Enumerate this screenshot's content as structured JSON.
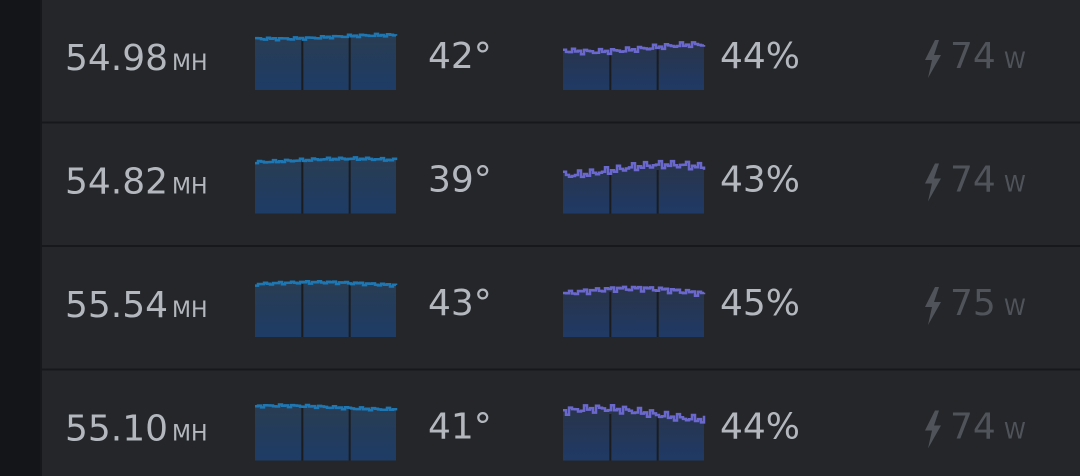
{
  "rows": [
    {
      "hashrate": "54.98",
      "hashrate_unit": "MH",
      "temperature": "42°",
      "fan": "44%",
      "power": "74",
      "power_unit": "W"
    },
    {
      "hashrate": "54.82",
      "hashrate_unit": "MH",
      "temperature": "39°",
      "fan": "43%",
      "power": "74",
      "power_unit": "W"
    },
    {
      "hashrate": "55.54",
      "hashrate_unit": "MH",
      "temperature": "43°",
      "fan": "45%",
      "power": "75",
      "power_unit": "W"
    },
    {
      "hashrate": "55.10",
      "hashrate_unit": "MH",
      "temperature": "41°",
      "fan": "44%",
      "power": "74",
      "power_unit": "W"
    }
  ]
}
